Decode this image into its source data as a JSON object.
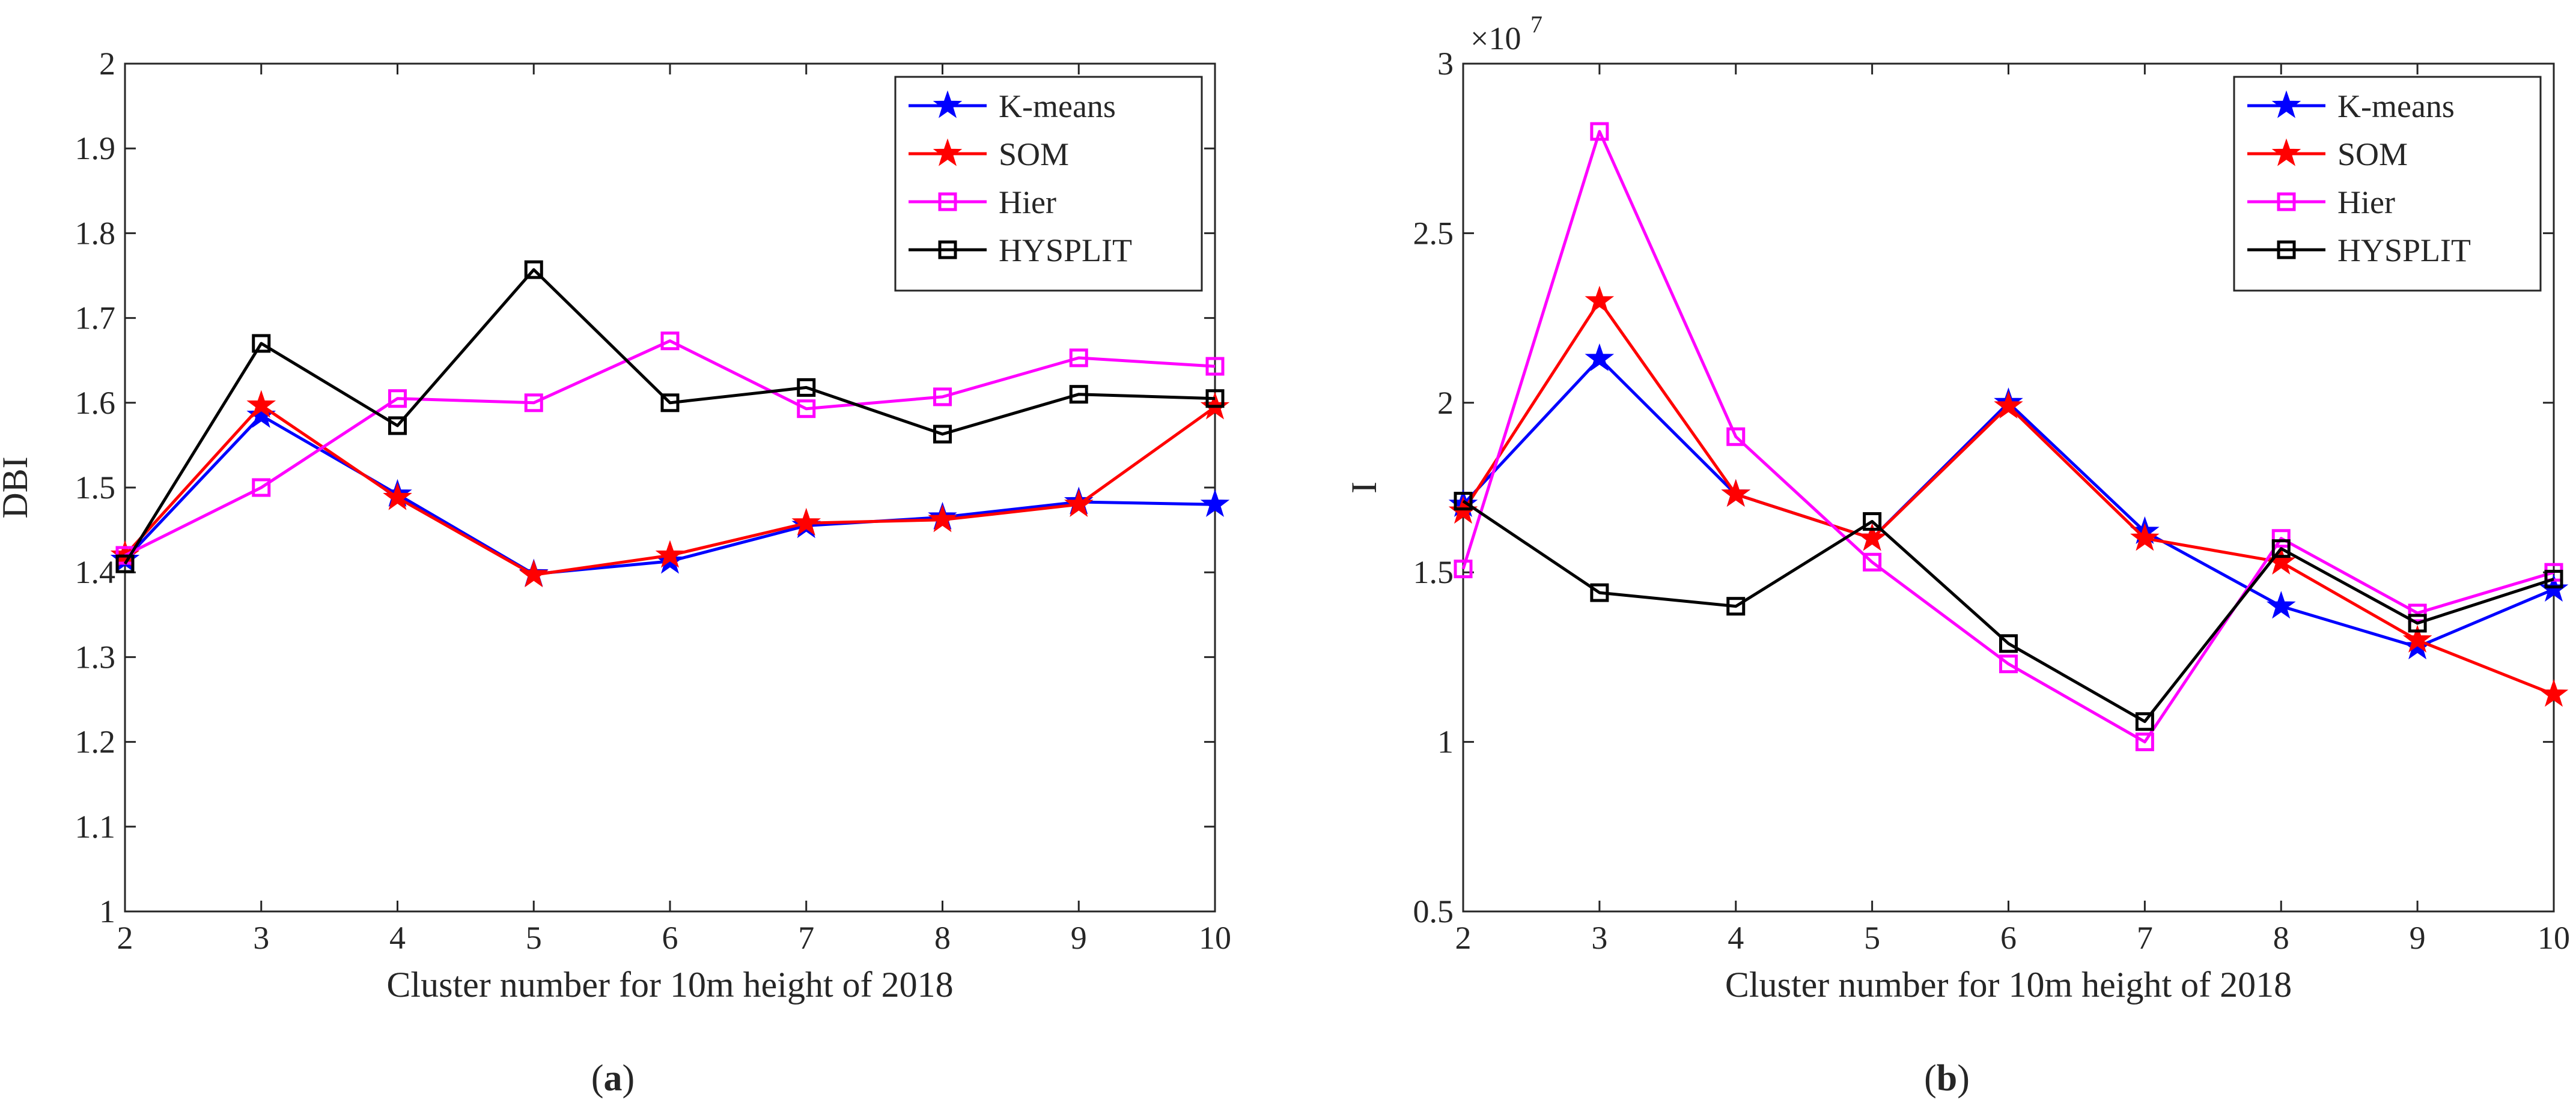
{
  "chart_data": [
    {
      "type": "line",
      "panel_label": "a",
      "panel_caption_open": "(",
      "panel_caption_close": ")",
      "xlabel": "Cluster number for 10m height of 2018",
      "ylabel": "DBI",
      "xlim": [
        2,
        10
      ],
      "ylim": [
        1,
        2
      ],
      "xticks": [
        "2",
        "3",
        "4",
        "5",
        "6",
        "7",
        "8",
        "9",
        "10"
      ],
      "yticks": [
        "1",
        "1.1",
        "1.2",
        "1.3",
        "1.4",
        "1.5",
        "1.6",
        "1.7",
        "1.8",
        "1.9",
        "2"
      ],
      "ytick_values": [
        1,
        1.1,
        1.2,
        1.3,
        1.4,
        1.5,
        1.6,
        1.7,
        1.8,
        1.9,
        2
      ],
      "exponent_label": "",
      "x": [
        2,
        3,
        4,
        5,
        6,
        7,
        8,
        9,
        10
      ],
      "legend_position": "top-right",
      "series": [
        {
          "name": "K-means",
          "color": "#0000ff",
          "marker": "star",
          "values": [
            1.415,
            1.585,
            1.492,
            1.398,
            1.413,
            1.455,
            1.465,
            1.483,
            1.48
          ]
        },
        {
          "name": "SOM",
          "color": "#ff0000",
          "marker": "star",
          "values": [
            1.42,
            1.597,
            1.488,
            1.397,
            1.42,
            1.458,
            1.462,
            1.48,
            1.595
          ]
        },
        {
          "name": "Hier",
          "color": "#ff00ff",
          "marker": "square",
          "values": [
            1.42,
            1.5,
            1.605,
            1.6,
            1.673,
            1.593,
            1.607,
            1.653,
            1.643
          ]
        },
        {
          "name": "HYSPLIT",
          "color": "#000000",
          "marker": "square",
          "values": [
            1.41,
            1.67,
            1.573,
            1.757,
            1.6,
            1.618,
            1.563,
            1.61,
            1.605
          ]
        }
      ]
    },
    {
      "type": "line",
      "panel_label": "b",
      "panel_caption_open": "(",
      "panel_caption_close": ")",
      "xlabel": "Cluster number for 10m height of 2018",
      "ylabel": "I",
      "xlim": [
        2,
        10
      ],
      "ylim": [
        0.5,
        3
      ],
      "xticks": [
        "2",
        "3",
        "4",
        "5",
        "6",
        "7",
        "8",
        "9",
        "10"
      ],
      "yticks": [
        "0.5",
        "1",
        "1.5",
        "2",
        "2.5",
        "3"
      ],
      "ytick_values": [
        0.5,
        1,
        1.5,
        2,
        2.5,
        3
      ],
      "exponent_label": "×10",
      "exponent_power": "7",
      "x": [
        2,
        3,
        4,
        5,
        6,
        7,
        8,
        9,
        10
      ],
      "legend_position": "top-right",
      "series": [
        {
          "name": "K-means",
          "color": "#0000ff",
          "marker": "star",
          "values": [
            1.7,
            2.13,
            1.73,
            1.6,
            2.0,
            1.62,
            1.4,
            1.28,
            1.45
          ]
        },
        {
          "name": "SOM",
          "color": "#ff0000",
          "marker": "star",
          "values": [
            1.68,
            2.3,
            1.73,
            1.6,
            1.99,
            1.6,
            1.53,
            1.3,
            1.14
          ]
        },
        {
          "name": "Hier",
          "color": "#ff00ff",
          "marker": "square",
          "values": [
            1.51,
            2.8,
            1.9,
            1.53,
            1.23,
            1.0,
            1.6,
            1.38,
            1.5
          ]
        },
        {
          "name": "HYSPLIT",
          "color": "#000000",
          "marker": "square",
          "values": [
            1.71,
            1.44,
            1.4,
            1.65,
            1.29,
            1.06,
            1.57,
            1.35,
            1.48
          ]
        }
      ]
    }
  ]
}
